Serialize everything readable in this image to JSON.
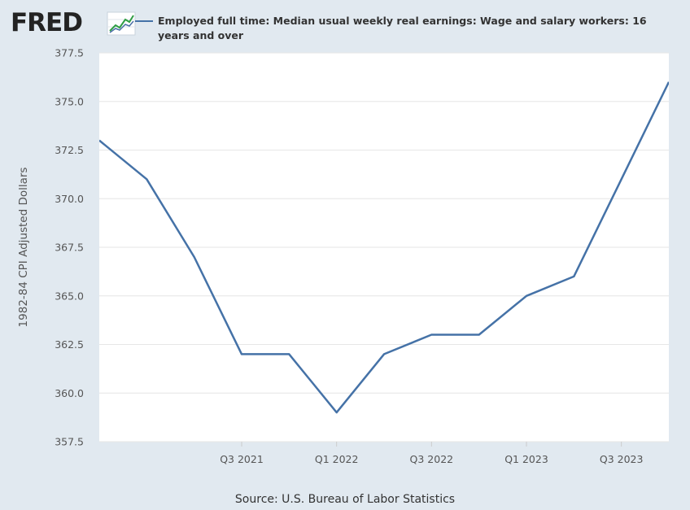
{
  "header": {
    "logo_text": "FRED",
    "logo_icon": "trend-graph-icon",
    "legend_label": "Employed full time: Median usual weekly real earnings: Wage and salary workers: 16 years and over"
  },
  "footer": {
    "source": "Source: U.S. Bureau of Labor Statistics"
  },
  "colors": {
    "line": "#4572a7",
    "plot_background": "#ffffff",
    "page_background": "#e1e9f0",
    "grid": "#e6e6e6"
  },
  "chart_data": {
    "type": "line",
    "title": "",
    "xlabel": "",
    "ylabel": "1982-84 CPI Adjusted Dollars",
    "ylim": [
      357.5,
      377.5
    ],
    "y_ticks": [
      "357.5",
      "360.0",
      "362.5",
      "365.0",
      "367.5",
      "370.0",
      "372.5",
      "375.0",
      "377.5"
    ],
    "x_tick_labels": [
      "Q3 2021",
      "Q1 2022",
      "Q3 2022",
      "Q1 2023",
      "Q3 2023"
    ],
    "x_tick_positions": [
      "2021-Q3",
      "2022-Q1",
      "2022-Q3",
      "2023-Q1",
      "2023-Q3"
    ],
    "grid": true,
    "series": [
      {
        "name": "Employed full time: Median usual weekly real earnings: Wage and salary workers: 16 years and over",
        "x": [
          "2020-Q4",
          "2021-Q1",
          "2021-Q2",
          "2021-Q3",
          "2021-Q4",
          "2022-Q1",
          "2022-Q2",
          "2022-Q3",
          "2022-Q4",
          "2023-Q1",
          "2023-Q2",
          "2023-Q3",
          "2023-Q4"
        ],
        "values": [
          373,
          371,
          367,
          362,
          362,
          359,
          362,
          363,
          363,
          365,
          366,
          371,
          376
        ]
      }
    ]
  }
}
